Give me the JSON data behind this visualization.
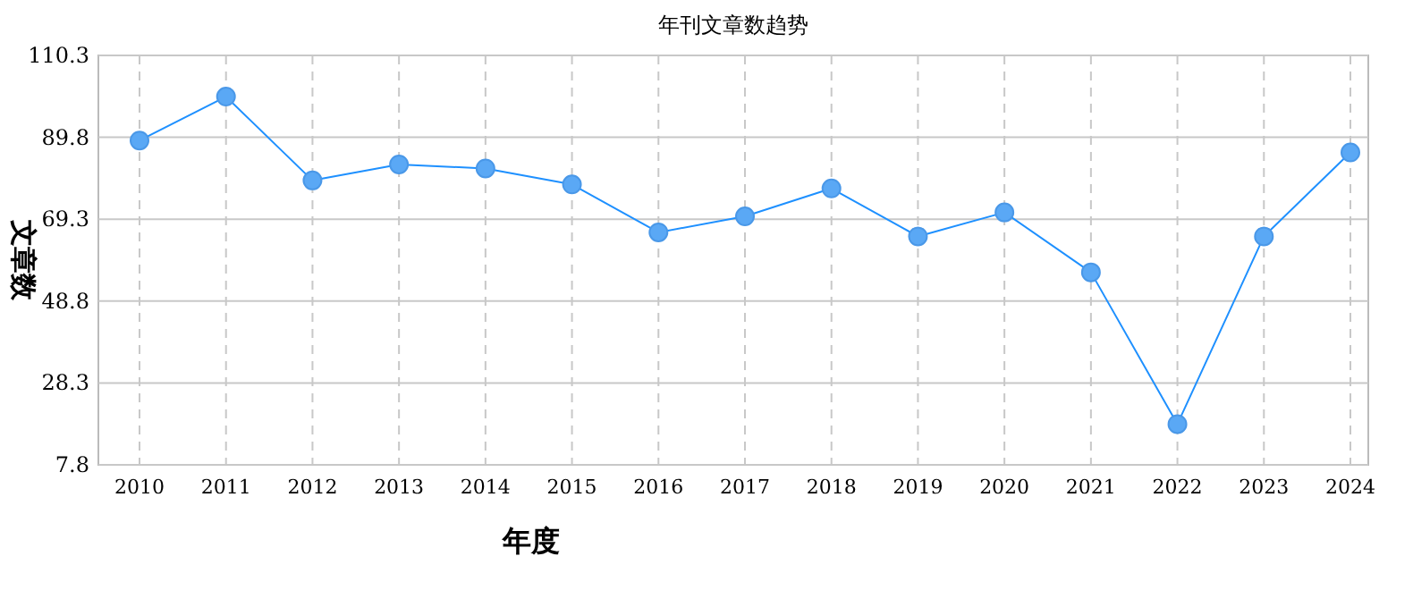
{
  "chart_data": {
    "type": "line",
    "title": "年刊文章数趋势",
    "xlabel": "年度",
    "ylabel": "文章数",
    "categories": [
      "2010",
      "2011",
      "2012",
      "2013",
      "2014",
      "2015",
      "2016",
      "2017",
      "2018",
      "2019",
      "2020",
      "2021",
      "2022",
      "2023",
      "2024"
    ],
    "series": [
      {
        "color": "#1e90ff",
        "values": [
          89,
          100,
          79,
          83,
          82,
          78,
          66,
          70,
          77,
          65,
          71,
          56,
          18,
          65,
          86
        ]
      }
    ],
    "ylim": [
      7.8,
      110.3
    ],
    "yticks": [
      7.8,
      28.3,
      48.8,
      69.3,
      89.8,
      110.3
    ],
    "grid": true,
    "marker": "circle",
    "line_style": "solid"
  }
}
